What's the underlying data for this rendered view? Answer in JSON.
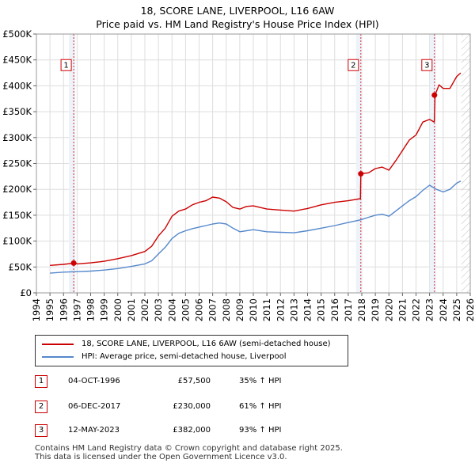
{
  "colors": {
    "property": "#cc0000",
    "hpi": "#5588cc",
    "grid": "#dddddd",
    "marker_bg": "#eef2f9"
  },
  "chart_data": {
    "type": "line",
    "title": "18, SCORE LANE, LIVERPOOL, L16 6AW",
    "subtitle": "Price paid vs. HM Land Registry's House Price Index (HPI)",
    "xlim": [
      1994,
      2026
    ],
    "ylim": [
      0,
      500000
    ],
    "xticks": [
      "1994",
      "1995",
      "1996",
      "1997",
      "1998",
      "1999",
      "2000",
      "2001",
      "2002",
      "2003",
      "2004",
      "2005",
      "2006",
      "2007",
      "2008",
      "2009",
      "2010",
      "2011",
      "2012",
      "2013",
      "2014",
      "2015",
      "2016",
      "2017",
      "2018",
      "2019",
      "2020",
      "2021",
      "2022",
      "2023",
      "2024",
      "2025",
      "2026"
    ],
    "yticks": [
      {
        "value": 0,
        "label": "£0"
      },
      {
        "value": 50000,
        "label": "£50K"
      },
      {
        "value": 100000,
        "label": "£100K"
      },
      {
        "value": 150000,
        "label": "£150K"
      },
      {
        "value": 200000,
        "label": "£200K"
      },
      {
        "value": 250000,
        "label": "£250K"
      },
      {
        "value": 300000,
        "label": "£300K"
      },
      {
        "value": 350000,
        "label": "£350K"
      },
      {
        "value": 400000,
        "label": "£400K"
      },
      {
        "value": 450000,
        "label": "£450K"
      },
      {
        "value": 500000,
        "label": "£500K"
      }
    ],
    "series": [
      {
        "name": "18, SCORE LANE, LIVERPOOL, L16 6AW (semi-detached house)",
        "x": [
          1995.0,
          1996.0,
          1996.75,
          1997.0,
          1998.0,
          1999.0,
          2000.0,
          2001.0,
          2002.0,
          2002.5,
          2003.0,
          2003.5,
          2004.0,
          2004.5,
          2005.0,
          2005.5,
          2006.0,
          2006.5,
          2007.0,
          2007.5,
          2008.0,
          2008.5,
          2009.0,
          2009.5,
          2010.0,
          2011.0,
          2012.0,
          2013.0,
          2014.0,
          2015.0,
          2016.0,
          2017.0,
          2017.9,
          2017.93,
          2018.5,
          2019.0,
          2019.5,
          2020.0,
          2020.5,
          2021.0,
          2021.5,
          2022.0,
          2022.5,
          2023.0,
          2023.35,
          2023.4,
          2023.7,
          2024.0,
          2024.5,
          2025.0,
          2025.3
        ],
        "values": [
          53000,
          55000,
          57500,
          56000,
          58000,
          61000,
          66000,
          72000,
          80000,
          90000,
          110000,
          125000,
          148000,
          158000,
          162000,
          170000,
          175000,
          178000,
          185000,
          183000,
          176000,
          165000,
          162000,
          167000,
          168000,
          162000,
          160000,
          158000,
          163000,
          170000,
          175000,
          178000,
          182000,
          230000,
          232000,
          240000,
          243000,
          237000,
          255000,
          275000,
          295000,
          305000,
          330000,
          335000,
          330000,
          382000,
          402000,
          395000,
          395000,
          418000,
          425000
        ]
      },
      {
        "name": "HPI: Average price, semi-detached house, Liverpool",
        "x": [
          1995.0,
          1996.0,
          1997.0,
          1998.0,
          1999.0,
          2000.0,
          2001.0,
          2002.0,
          2002.5,
          2003.0,
          2003.5,
          2004.0,
          2004.5,
          2005.0,
          2005.5,
          2006.0,
          2006.5,
          2007.0,
          2007.5,
          2008.0,
          2008.5,
          2009.0,
          2009.5,
          2010.0,
          2011.0,
          2012.0,
          2013.0,
          2014.0,
          2015.0,
          2016.0,
          2017.0,
          2017.9,
          2018.5,
          2019.0,
          2019.5,
          2020.0,
          2020.5,
          2021.0,
          2021.5,
          2022.0,
          2022.5,
          2023.0,
          2023.5,
          2024.0,
          2024.5,
          2025.0,
          2025.3
        ],
        "values": [
          38000,
          40000,
          41000,
          42000,
          44000,
          47000,
          51000,
          56000,
          62000,
          75000,
          88000,
          105000,
          115000,
          120000,
          124000,
          127000,
          130000,
          133000,
          135000,
          133000,
          125000,
          118000,
          120000,
          122000,
          118000,
          117000,
          116000,
          120000,
          125000,
          130000,
          136000,
          141000,
          146000,
          150000,
          152000,
          148000,
          158000,
          168000,
          178000,
          186000,
          198000,
          208000,
          200000,
          195000,
          200000,
          212000,
          216000
        ]
      }
    ],
    "markers": [
      {
        "label": "1",
        "x": 1996.75,
        "value": 57500
      },
      {
        "label": "2",
        "x": 2017.93,
        "value": 230000
      },
      {
        "label": "3",
        "x": 2023.36,
        "value": 382000
      }
    ]
  },
  "legend": {
    "property_label": "18, SCORE LANE, LIVERPOOL, L16 6AW (semi-detached house)",
    "hpi_label": "HPI: Average price, semi-detached house, Liverpool"
  },
  "sales": [
    {
      "num": "1",
      "date": "04-OCT-1996",
      "price": "£57,500",
      "hpi": "35% ↑ HPI"
    },
    {
      "num": "2",
      "date": "06-DEC-2017",
      "price": "£230,000",
      "hpi": "61% ↑ HPI"
    },
    {
      "num": "3",
      "date": "12-MAY-2023",
      "price": "£382,000",
      "hpi": "93% ↑ HPI"
    }
  ],
  "footer": {
    "line1": "Contains HM Land Registry data © Crown copyright and database right 2025.",
    "line2": "This data is licensed under the Open Government Licence v3.0."
  }
}
